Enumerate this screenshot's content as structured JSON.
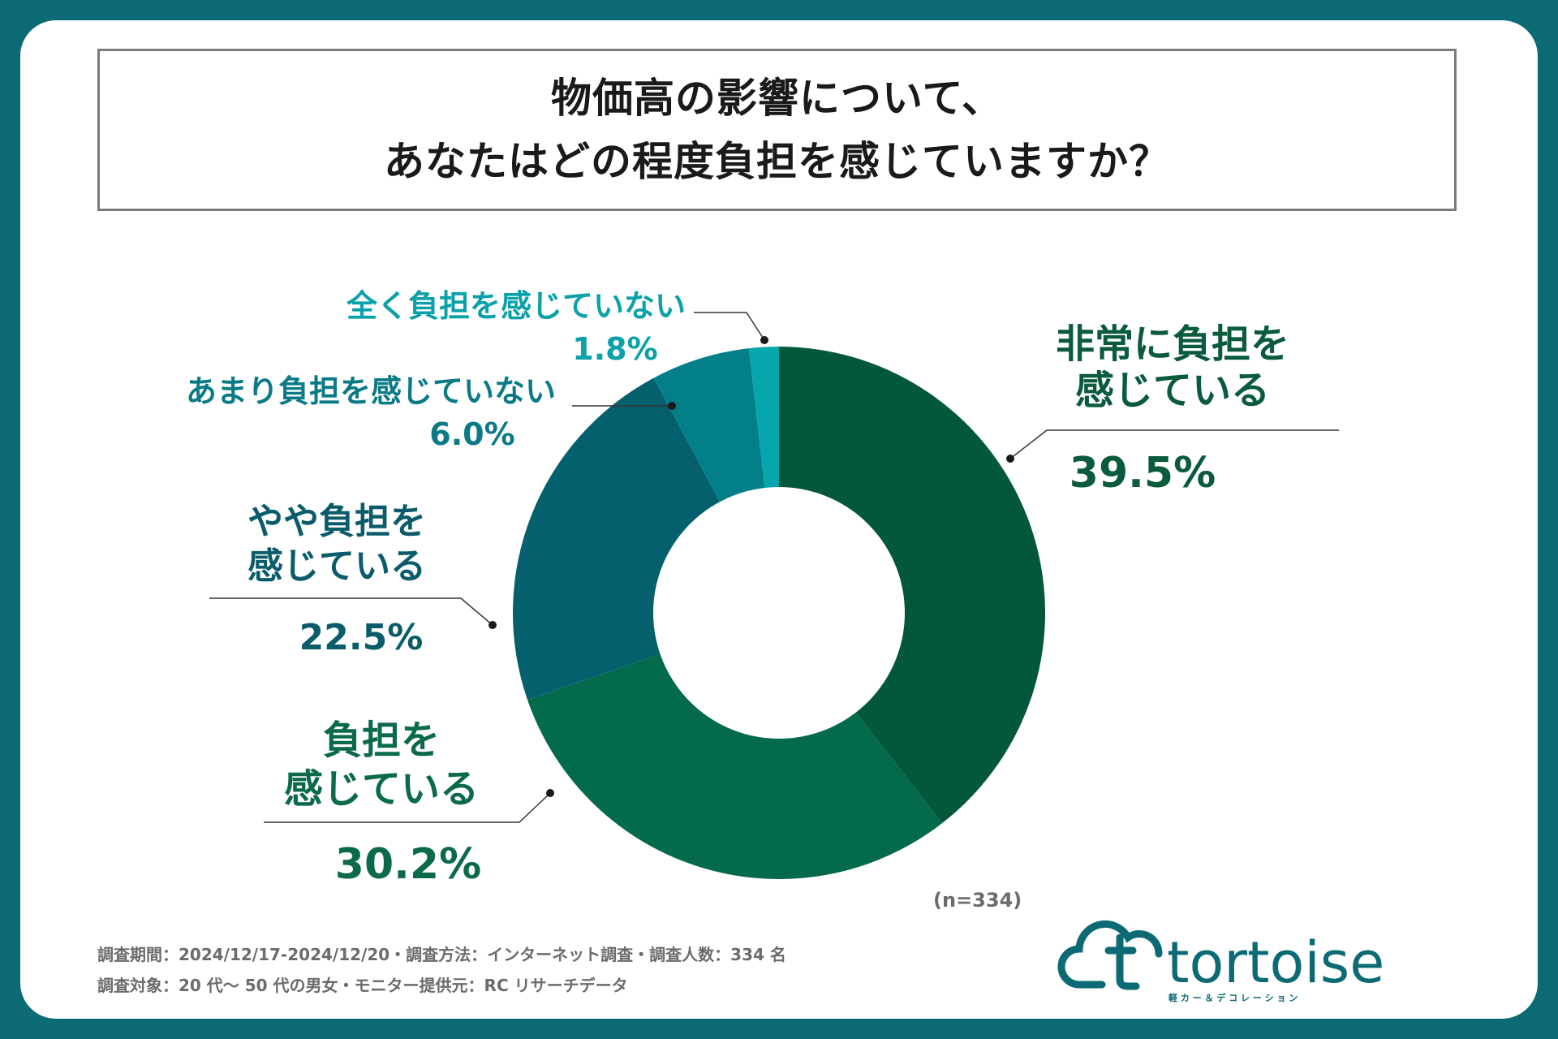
{
  "title": {
    "line1": "物価高の影響について、",
    "line2": "あなたはどの程度負担を感じていますか？"
  },
  "chart_data": {
    "type": "donut",
    "total_label": "(n=334)",
    "series": [
      {
        "name": "非常に負担を感じている",
        "label_lines": [
          "非常に負担を",
          "感じている"
        ],
        "value": 39.5,
        "value_label": "39.5%",
        "color": "#03573a"
      },
      {
        "name": "負担を感じている",
        "label_lines": [
          "負担を",
          "感じている"
        ],
        "value": 30.2,
        "value_label": "30.2%",
        "color": "#036a4c"
      },
      {
        "name": "やや負担を感じている",
        "label_lines": [
          "やや負担を",
          "感じている"
        ],
        "value": 22.5,
        "value_label": "22.5%",
        "color": "#05606d"
      },
      {
        "name": "あまり負担を感じていない",
        "label_lines": [
          "あまり負担を感じていない"
        ],
        "value": 6.0,
        "value_label": "6.0%",
        "color": "#037f89"
      },
      {
        "name": "全く負担を感じていない",
        "label_lines": [
          "全く負担を感じていない"
        ],
        "value": 1.8,
        "value_label": "1.8%",
        "color": "#05a7ad"
      }
    ]
  },
  "footer": {
    "line1": "調査期間：2024/12/17-2024/12/20・調査方法：インターネット調査・調査人数：334 名",
    "line2": "調査対象：20 代～ 50 代の男女・モニター提供元：RC リサーチデータ"
  },
  "logo": {
    "word": "tortoise",
    "tagline": "軽 カ ー ＆ デ コ レ ー シ ョ ン",
    "color": "#0b6a73"
  }
}
